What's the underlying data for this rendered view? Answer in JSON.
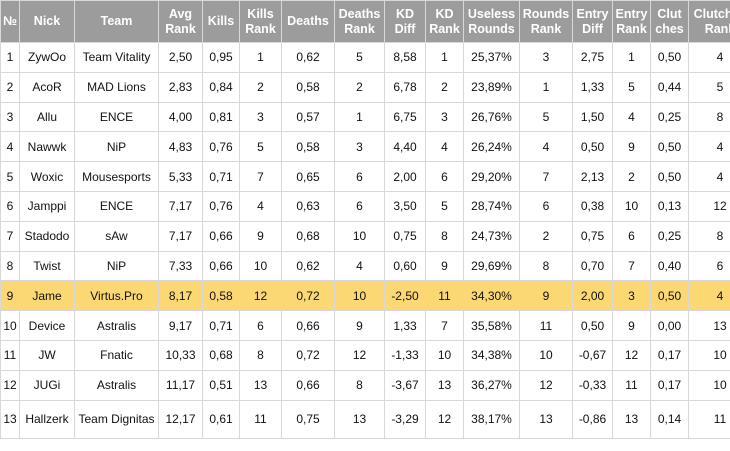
{
  "columns": [
    {
      "key": "n",
      "label": "№"
    },
    {
      "key": "nick",
      "label": "Nick"
    },
    {
      "key": "team",
      "label": "Team"
    },
    {
      "key": "avg_rank",
      "label": "Avg Rank"
    },
    {
      "key": "kills",
      "label": "Kills"
    },
    {
      "key": "kills_rank",
      "label": "Kills Rank"
    },
    {
      "key": "deaths",
      "label": "Deaths"
    },
    {
      "key": "deaths_rank",
      "label": "Deaths Rank"
    },
    {
      "key": "kd_diff",
      "label": "KD Diff"
    },
    {
      "key": "kd_rank",
      "label": "KD Rank"
    },
    {
      "key": "useless",
      "label": "Useless Rounds"
    },
    {
      "key": "rounds_rank",
      "label": "Rounds Rank"
    },
    {
      "key": "entry_diff",
      "label": "Entry Diff"
    },
    {
      "key": "entry_rank",
      "label": "Entry Rank"
    },
    {
      "key": "clutches",
      "label": "Clut ches"
    },
    {
      "key": "clutches_rank",
      "label": "Clutches Rank"
    }
  ],
  "highlight_color": "#fbd873",
  "highlight_row": 8,
  "rows": [
    [
      "1",
      "ZywOo",
      "Team Vitality",
      "2,50",
      "0,95",
      "1",
      "0,62",
      "5",
      "8,58",
      "1",
      "25,37%",
      "3",
      "2,75",
      "1",
      "0,50",
      "4"
    ],
    [
      "2",
      "AcoR",
      "MAD Lions",
      "2,83",
      "0,84",
      "2",
      "0,58",
      "2",
      "6,78",
      "2",
      "23,89%",
      "1",
      "1,33",
      "5",
      "0,44",
      "5"
    ],
    [
      "3",
      "Allu",
      "ENCE",
      "4,00",
      "0,81",
      "3",
      "0,57",
      "1",
      "6,75",
      "3",
      "26,76%",
      "5",
      "1,50",
      "4",
      "0,25",
      "8"
    ],
    [
      "4",
      "Nawwk",
      "NiP",
      "4,83",
      "0,76",
      "5",
      "0,58",
      "3",
      "4,40",
      "4",
      "26,24%",
      "4",
      "0,50",
      "9",
      "0,50",
      "4"
    ],
    [
      "5",
      "Woxic",
      "Mousesports",
      "5,33",
      "0,71",
      "7",
      "0,65",
      "6",
      "2,00",
      "6",
      "29,20%",
      "7",
      "2,13",
      "2",
      "0,50",
      "4"
    ],
    [
      "6",
      "Jamppi",
      "ENCE",
      "7,17",
      "0,76",
      "4",
      "0,63",
      "6",
      "3,50",
      "5",
      "28,74%",
      "6",
      "0,38",
      "10",
      "0,13",
      "12"
    ],
    [
      "7",
      "Stadodo",
      "sAw",
      "7,17",
      "0,66",
      "9",
      "0,68",
      "10",
      "0,75",
      "8",
      "24,73%",
      "2",
      "0,75",
      "6",
      "0,25",
      "8"
    ],
    [
      "8",
      "Twist",
      "NiP",
      "7,33",
      "0,66",
      "10",
      "0,62",
      "4",
      "0,60",
      "9",
      "29,69%",
      "8",
      "0,70",
      "7",
      "0,40",
      "6"
    ],
    [
      "9",
      "Jame",
      "Virtus.Pro",
      "8,17",
      "0,58",
      "12",
      "0,72",
      "10",
      "-2,50",
      "11",
      "34,30%",
      "9",
      "2,00",
      "3",
      "0,50",
      "4"
    ],
    [
      "10",
      "Device",
      "Astralis",
      "9,17",
      "0,71",
      "6",
      "0,66",
      "9",
      "1,33",
      "7",
      "35,58%",
      "11",
      "0,50",
      "9",
      "0,00",
      "13"
    ],
    [
      "11",
      "JW",
      "Fnatic",
      "10,33",
      "0,68",
      "8",
      "0,72",
      "12",
      "-1,33",
      "10",
      "34,38%",
      "10",
      "-0,67",
      "12",
      "0,17",
      "10"
    ],
    [
      "12",
      "JUGi",
      "Astralis",
      "11,17",
      "0,51",
      "13",
      "0,66",
      "8",
      "-3,67",
      "13",
      "36,27%",
      "12",
      "-0,33",
      "11",
      "0,17",
      "10"
    ],
    [
      "13",
      "Hallzerk",
      "Team Dignitas",
      "12,17",
      "0,61",
      "11",
      "0,75",
      "13",
      "-3,29",
      "12",
      "38,17%",
      "13",
      "-0,86",
      "13",
      "0,14",
      "11"
    ]
  ]
}
